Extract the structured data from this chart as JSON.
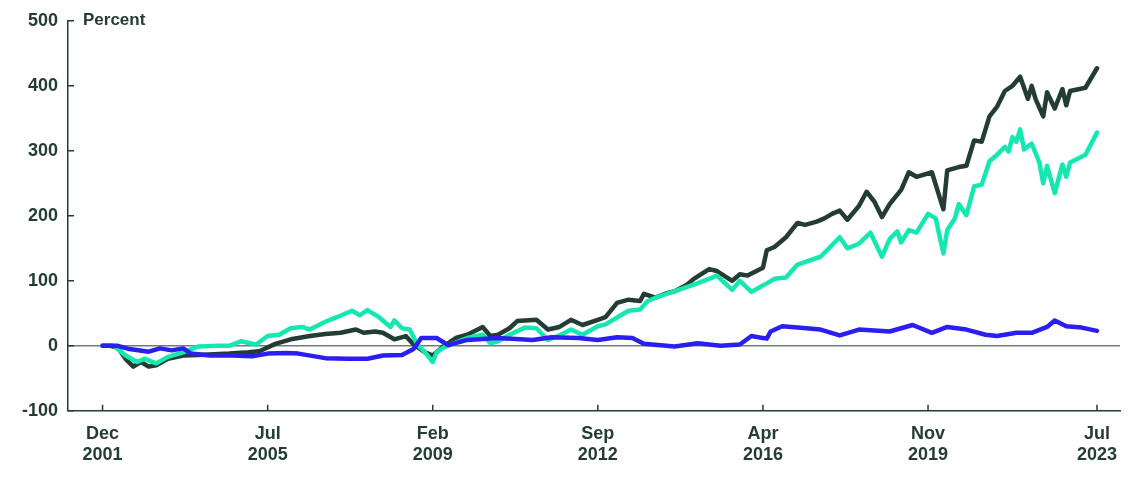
{
  "chart_data": {
    "type": "line",
    "ylabel": "Percent",
    "xlim": [
      "2001-03",
      "2024-01"
    ],
    "xticks": [
      {
        "value": "2001-12",
        "label": "Dec 2001"
      },
      {
        "value": "2005-07",
        "label": "Jul 2005"
      },
      {
        "value": "2009-02",
        "label": "Feb 2009"
      },
      {
        "value": "2012-09",
        "label": "Sep 2012"
      },
      {
        "value": "2016-04",
        "label": "Apr 2016"
      },
      {
        "value": "2019-11",
        "label": "Nov 2019"
      },
      {
        "value": "2023-07",
        "label": "Jul 2023"
      }
    ],
    "ylim": [
      -100,
      500
    ],
    "yticks": [
      -100,
      0,
      100,
      200,
      300,
      400,
      500
    ],
    "grid": false,
    "legend": false,
    "marker": "none",
    "line_style": "solid",
    "ref_lines": [
      {
        "axis": "y",
        "value": 0,
        "color": "#6e7d76"
      }
    ],
    "series": [
      {
        "color": "#2b1ef0",
        "x": [
          "2001-12",
          "2002-04",
          "2002-07",
          "2002-12",
          "2003-03",
          "2003-06",
          "2003-09",
          "2003-11",
          "2004-04",
          "2004-10",
          "2005-03",
          "2005-07",
          "2005-12",
          "2006-03",
          "2006-10",
          "2007-04",
          "2007-09",
          "2008-01",
          "2008-06",
          "2008-09",
          "2008-11",
          "2009-03",
          "2009-06",
          "2009-11",
          "2010-07",
          "2011-04",
          "2011-09",
          "2012-04",
          "2012-09",
          "2013-02",
          "2013-06",
          "2013-09",
          "2014-05",
          "2014-11",
          "2015-05",
          "2015-10",
          "2016-01",
          "2016-05",
          "2016-06",
          "2016-09",
          "2017-01",
          "2017-07",
          "2017-12",
          "2018-05",
          "2019-01",
          "2019-07",
          "2019-12",
          "2020-04",
          "2020-09",
          "2021-02",
          "2021-05",
          "2021-10",
          "2022-02",
          "2022-06",
          "2022-08",
          "2022-11",
          "2023-03",
          "2023-07"
        ],
        "values": [
          0,
          0,
          -5,
          -9,
          -4,
          -7,
          -4,
          -12,
          -15,
          -15,
          -16,
          -12,
          -11,
          -12,
          -19,
          -20,
          -20,
          -15,
          -14,
          -5,
          12,
          12,
          1,
          9,
          12,
          9,
          13,
          12,
          9,
          13,
          12,
          3,
          -1,
          4,
          0,
          2,
          15,
          11,
          22,
          30,
          28,
          25,
          16,
          25,
          22,
          32,
          20,
          29,
          25,
          17,
          15,
          20,
          20,
          29,
          39,
          30,
          28,
          23
        ]
      },
      {
        "color": "#14e8b0",
        "x": [
          "2001-12",
          "2002-03",
          "2002-06",
          "2002-09",
          "2002-11",
          "2003-02",
          "2003-05",
          "2003-09",
          "2004-01",
          "2004-06",
          "2004-09",
          "2004-12",
          "2005-04",
          "2005-07",
          "2005-10",
          "2006-01",
          "2006-04",
          "2006-06",
          "2006-10",
          "2007-01",
          "2007-05",
          "2007-07",
          "2007-09",
          "2007-12",
          "2008-03",
          "2008-04",
          "2008-06",
          "2008-08",
          "2008-10",
          "2008-12",
          "2009-02",
          "2009-03",
          "2009-05",
          "2009-08",
          "2009-11",
          "2010-03",
          "2010-05",
          "2010-07",
          "2010-10",
          "2011-02",
          "2011-05",
          "2011-08",
          "2011-11",
          "2012-02",
          "2012-05",
          "2012-09",
          "2012-11",
          "2013-03",
          "2013-05",
          "2013-08",
          "2013-10",
          "2013-12",
          "2014-05",
          "2014-10",
          "2015-02",
          "2015-04",
          "2015-08",
          "2015-10",
          "2016-01",
          "2016-05",
          "2016-07",
          "2016-10",
          "2017-01",
          "2017-07",
          "2017-12",
          "2018-02",
          "2018-05",
          "2018-08",
          "2018-11",
          "2019-01",
          "2019-03",
          "2019-04",
          "2019-06",
          "2019-08",
          "2019-11",
          "2020-01",
          "2020-03",
          "2020-04",
          "2020-06",
          "2020-07",
          "2020-09",
          "2020-11",
          "2021-01",
          "2021-03",
          "2021-05",
          "2021-07",
          "2021-08",
          "2021-09",
          "2021-10",
          "2021-11",
          "2021-12",
          "2022-02",
          "2022-04",
          "2022-05",
          "2022-06",
          "2022-08",
          "2022-10",
          "2022-11",
          "2022-12",
          "2023-04",
          "2023-07"
        ],
        "values": [
          0,
          0,
          -15,
          -25,
          -20,
          -27,
          -17,
          -10,
          -1,
          0,
          0,
          7,
          2,
          15,
          17,
          27,
          29,
          25,
          37,
          44,
          54,
          47,
          55,
          44,
          29,
          39,
          27,
          25,
          2,
          -10,
          -25,
          -10,
          -2,
          5,
          12,
          17,
          4,
          7,
          17,
          28,
          27,
          9,
          16,
          25,
          17,
          30,
          33,
          47,
          54,
          56,
          69,
          74,
          84,
          94,
          103,
          108,
          86,
          100,
          83,
          96,
          103,
          105,
          125,
          137,
          167,
          150,
          157,
          174,
          137,
          164,
          176,
          159,
          178,
          174,
          203,
          196,
          142,
          178,
          196,
          218,
          201,
          245,
          248,
          284,
          294,
          306,
          299,
          321,
          314,
          333,
          302,
          311,
          282,
          250,
          277,
          235,
          279,
          260,
          282,
          294,
          328
        ]
      },
      {
        "color": "#243d33",
        "x": [
          "2001-12",
          "2002-02",
          "2002-04",
          "2002-06",
          "2002-08",
          "2002-10",
          "2002-12",
          "2003-02",
          "2003-05",
          "2003-09",
          "2004-01",
          "2004-05",
          "2004-09",
          "2005-02",
          "2005-05",
          "2005-09",
          "2006-01",
          "2006-03",
          "2006-06",
          "2006-10",
          "2007-02",
          "2007-06",
          "2007-08",
          "2007-11",
          "2008-01",
          "2008-04",
          "2008-07",
          "2008-09",
          "2008-12",
          "2009-02",
          "2009-05",
          "2009-08",
          "2009-11",
          "2010-03",
          "2010-05",
          "2010-07",
          "2010-10",
          "2010-12",
          "2011-05",
          "2011-08",
          "2011-11",
          "2012-02",
          "2012-05",
          "2012-09",
          "2012-11",
          "2013-02",
          "2013-05",
          "2013-08",
          "2013-09",
          "2013-12",
          "2014-03",
          "2014-05",
          "2014-08",
          "2014-10",
          "2015-02",
          "2015-04",
          "2015-08",
          "2015-10",
          "2015-12",
          "2016-04",
          "2016-05",
          "2016-07",
          "2016-10",
          "2017-01",
          "2017-03",
          "2017-06",
          "2017-08",
          "2017-10",
          "2017-12",
          "2018-02",
          "2018-05",
          "2018-07",
          "2018-09",
          "2018-11",
          "2019-01",
          "2019-04",
          "2019-06",
          "2019-08",
          "2019-12",
          "2020-03",
          "2020-04",
          "2020-07",
          "2020-09",
          "2020-11",
          "2021-01",
          "2021-03",
          "2021-05",
          "2021-07",
          "2021-09",
          "2021-11",
          "2022-01",
          "2022-02",
          "2022-03",
          "2022-05",
          "2022-06",
          "2022-08",
          "2022-10",
          "2022-11",
          "2022-12",
          "2023-04",
          "2023-07"
        ],
        "values": [
          0,
          0,
          -3,
          -20,
          -32,
          -25,
          -32,
          -30,
          -20,
          -15,
          -14,
          -13,
          -12,
          -10,
          -8,
          3,
          10,
          12,
          15,
          18,
          20,
          25,
          20,
          22,
          20,
          10,
          15,
          2,
          -10,
          -15,
          0,
          12,
          17,
          29,
          15,
          17,
          27,
          38,
          40,
          25,
          29,
          40,
          32,
          40,
          44,
          66,
          71,
          69,
          80,
          74,
          81,
          84,
          93,
          103,
          118,
          115,
          100,
          110,
          108,
          120,
          147,
          152,
          167,
          189,
          186,
          191,
          196,
          203,
          208,
          194,
          215,
          237,
          222,
          198,
          218,
          240,
          267,
          260,
          267,
          210,
          270,
          275,
          277,
          316,
          314,
          353,
          368,
          392,
          400,
          414,
          380,
          400,
          380,
          353,
          390,
          365,
          395,
          370,
          392,
          397,
          427
        ]
      }
    ]
  }
}
